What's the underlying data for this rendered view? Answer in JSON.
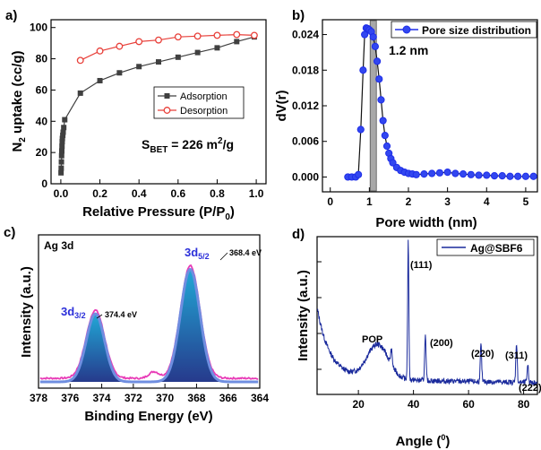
{
  "chart_data": [
    {
      "panel": "a)",
      "type": "line",
      "xlabel": "Relative Pressure (P/P",
      "xlabel_sub": "0",
      "xlabel_tail": ")",
      "ylabel": "N",
      "ylabel_sub": "2",
      "ylabel_tail": " uptake (cc/g)",
      "xlim": [
        -0.05,
        1.05
      ],
      "ylim": [
        0,
        105
      ],
      "xticks": [
        "0.0",
        "0.2",
        "0.4",
        "0.6",
        "0.8",
        "1.0"
      ],
      "xtick_values": [
        0.0,
        0.2,
        0.4,
        0.6,
        0.8,
        1.0
      ],
      "yticks": [
        "0",
        "20",
        "40",
        "60",
        "80",
        "100"
      ],
      "ytick_values": [
        0,
        20,
        40,
        60,
        80,
        100
      ],
      "legend_position": "center-right",
      "annotation": "S",
      "annotation_sub": "BET",
      "annotation_tail": " = 226 m",
      "annotation_sup": "2",
      "annotation_end": "/g",
      "series": [
        {
          "name": "Adsorption",
          "color": "#404040",
          "marker": "square",
          "x": [
            0.001,
            0.002,
            0.003,
            0.004,
            0.005,
            0.006,
            0.007,
            0.008,
            0.01,
            0.012,
            0.015,
            0.02,
            0.1,
            0.2,
            0.3,
            0.4,
            0.5,
            0.6,
            0.7,
            0.8,
            0.9,
            0.99
          ],
          "y": [
            7,
            10,
            14,
            18,
            21,
            24,
            27,
            29,
            31,
            33,
            36,
            41,
            58,
            66,
            71,
            75,
            78,
            81,
            84,
            87,
            91,
            94
          ]
        },
        {
          "name": "Desorption",
          "color": "#e8403a",
          "marker": "circle",
          "x": [
            0.99,
            0.9,
            0.8,
            0.7,
            0.6,
            0.5,
            0.4,
            0.3,
            0.2,
            0.1
          ],
          "y": [
            95,
            95.5,
            95,
            94.5,
            94,
            92,
            91,
            88,
            85,
            79
          ]
        }
      ]
    },
    {
      "panel": "b)",
      "type": "line",
      "xlabel": "Pore width (nm)",
      "ylabel": "dV(r)",
      "xlim": [
        -0.2,
        5.3
      ],
      "ylim": [
        -0.0025,
        0.0265
      ],
      "xticks": [
        "0",
        "1",
        "2",
        "3",
        "4",
        "5"
      ],
      "xtick_values": [
        0,
        1,
        2,
        3,
        4,
        5
      ],
      "yticks": [
        "0.000",
        "0.006",
        "0.012",
        "0.018",
        "0.024"
      ],
      "ytick_values": [
        0,
        0.006,
        0.012,
        0.018,
        0.024
      ],
      "legend_position": "top-right",
      "annotation": "1.2 nm",
      "highlight_x": [
        1.02,
        1.18
      ],
      "series": [
        {
          "name": "Pore size distribution",
          "color": "#1f2ee8",
          "marker": "circle",
          "x": [
            0.45,
            0.55,
            0.65,
            0.72,
            0.78,
            0.84,
            0.88,
            0.92,
            0.96,
            1.0,
            1.05,
            1.1,
            1.15,
            1.2,
            1.25,
            1.3,
            1.35,
            1.4,
            1.45,
            1.5,
            1.55,
            1.6,
            1.7,
            1.8,
            1.9,
            2.0,
            2.1,
            2.2,
            2.4,
            2.6,
            2.8,
            3.0,
            3.2,
            3.4,
            3.6,
            3.8,
            4.0,
            4.2,
            4.4,
            4.6,
            4.8,
            5.0,
            5.2
          ],
          "y": [
            0.0,
            0.0,
            0.0,
            0.0004,
            0.008,
            0.018,
            0.024,
            0.0251,
            0.025,
            0.0248,
            0.0245,
            0.0236,
            0.022,
            0.0195,
            0.0165,
            0.013,
            0.0095,
            0.007,
            0.0052,
            0.004,
            0.0031,
            0.0024,
            0.0016,
            0.0011,
            0.0008,
            0.0006,
            0.0005,
            0.0004,
            0.0005,
            0.0006,
            0.0007,
            0.0008,
            0.0006,
            0.0005,
            0.0004,
            0.0003,
            0.0003,
            0.0002,
            0.0002,
            0.0001,
            0.0001,
            0.0001,
            0.0001
          ]
        }
      ]
    },
    {
      "panel": "c)",
      "type": "line",
      "xlabel": "Binding Energy (eV)",
      "ylabel": "Intensity (a.u.)",
      "xlim": [
        378,
        364
      ],
      "xticks": [
        "378",
        "376",
        "374",
        "372",
        "370",
        "368",
        "366",
        "364"
      ],
      "xtick_values": [
        378,
        376,
        374,
        372,
        370,
        368,
        366,
        364
      ],
      "inner_label": "Ag 3d",
      "peaks": [
        {
          "label": "3d",
          "label_sub": "3/2",
          "position_ev": 374.4,
          "value_label": "374.4 eV",
          "height": 0.52,
          "width": 0.58
        },
        {
          "label": "3d",
          "label_sub": "5/2",
          "position_ev": 368.4,
          "value_label": "368.4 eV",
          "height": 0.86,
          "width": 0.62
        }
      ],
      "colors": {
        "raw": "#e83cb7",
        "fit": "#6f8ee0",
        "fill_top": "#21a8d6",
        "fill_bottom": "#263a8c",
        "label": "#2b2fd9"
      }
    },
    {
      "panel": "d)",
      "type": "line",
      "xlabel": "Angle (",
      "xlabel_sup": "0",
      "xlabel_tail": ")",
      "ylabel": "Intensity (a.u.)",
      "xlim": [
        5,
        85
      ],
      "xticks": [
        "20",
        "40",
        "60",
        "80"
      ],
      "xtick_values": [
        20,
        40,
        60,
        80
      ],
      "legend_position": "top-right",
      "series": [
        {
          "name": "Ag@SBF6",
          "color": "#1a2a9c"
        }
      ],
      "peaks": [
        {
          "label": "POP",
          "angle": 27
        },
        {
          "label": "(111)",
          "angle": 38.1
        },
        {
          "label": "(200)",
          "angle": 44.3
        },
        {
          "label": "(220)",
          "angle": 64.5
        },
        {
          "label": "(311)",
          "angle": 77.4
        },
        {
          "label": "(222)",
          "angle": 81.5
        }
      ]
    }
  ]
}
